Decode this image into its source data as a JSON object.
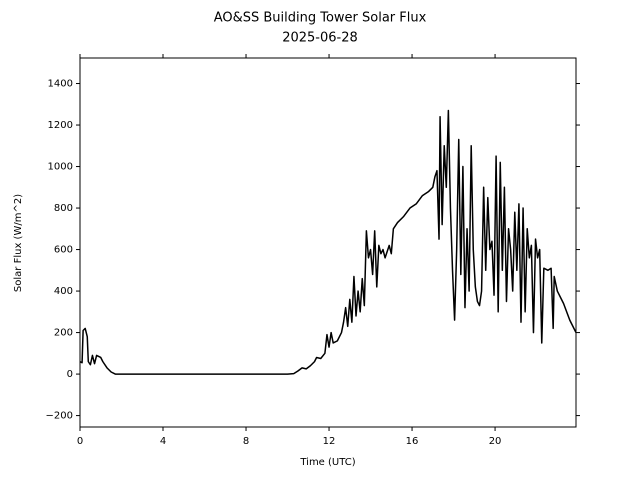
{
  "chart_data": {
    "type": "line",
    "title": "AO&SS Building Tower Solar Flux",
    "subtitle": "2025-06-28",
    "x_label": "Time (UTC)",
    "y_label": "Solar Flux (W/m^2)",
    "xlim": [
      0,
      23.9
    ],
    "ylim": [
      -255,
      1523
    ],
    "xticks": [
      0,
      4,
      8,
      12,
      16,
      20
    ],
    "yticks": [
      {
        "value": -200,
        "label": "−200"
      },
      0,
      200,
      400,
      600,
      800,
      1000,
      1200,
      1400
    ],
    "grid": false,
    "series": [
      {
        "color": "#000000",
        "x": [
          0,
          0.1,
          0.15,
          0.25,
          0.35,
          0.4,
          0.5,
          0.6,
          0.7,
          0.8,
          0.9,
          1.0,
          1.1,
          1.3,
          1.5,
          1.7,
          5,
          10,
          10.3,
          10.5,
          10.7,
          10.9,
          11.1,
          11.3,
          11.4,
          11.6,
          11.8,
          11.9,
          12.0,
          12.1,
          12.2,
          12.4,
          12.6,
          12.7,
          12.8,
          12.9,
          13.0,
          13.1,
          13.2,
          13.3,
          13.4,
          13.5,
          13.6,
          13.7,
          13.8,
          13.9,
          14.0,
          14.1,
          14.2,
          14.3,
          14.4,
          14.5,
          14.6,
          14.7,
          14.9,
          15.0,
          15.1,
          15.3,
          15.6,
          15.9,
          16.2,
          16.5,
          16.8,
          17.0,
          17.1,
          17.2,
          17.3,
          17.35,
          17.45,
          17.55,
          17.65,
          17.75,
          17.85,
          17.95,
          18.05,
          18.15,
          18.25,
          18.35,
          18.45,
          18.55,
          18.65,
          18.75,
          18.85,
          18.95,
          19.05,
          19.15,
          19.25,
          19.35,
          19.45,
          19.55,
          19.65,
          19.75,
          19.85,
          19.95,
          20.05,
          20.15,
          20.25,
          20.35,
          20.45,
          20.55,
          20.65,
          20.75,
          20.85,
          20.95,
          21.05,
          21.15,
          21.25,
          21.35,
          21.45,
          21.55,
          21.65,
          21.75,
          21.85,
          21.95,
          22.05,
          22.15,
          22.25,
          22.35,
          22.55,
          22.7,
          22.8,
          22.85,
          23.0,
          23.3,
          23.6,
          23.9
        ],
        "values": [
          60,
          55,
          210,
          220,
          180,
          60,
          45,
          90,
          50,
          90,
          85,
          80,
          60,
          30,
          10,
          0,
          0,
          0,
          2,
          15,
          30,
          25,
          40,
          60,
          80,
          75,
          100,
          190,
          130,
          200,
          150,
          160,
          200,
          250,
          320,
          230,
          360,
          250,
          470,
          280,
          400,
          300,
          460,
          330,
          690,
          560,
          600,
          480,
          690,
          420,
          620,
          580,
          600,
          560,
          620,
          580,
          700,
          730,
          760,
          800,
          820,
          860,
          880,
          900,
          950,
          980,
          650,
          1240,
          720,
          1100,
          900,
          1270,
          800,
          500,
          260,
          600,
          1130,
          480,
          1000,
          320,
          700,
          400,
          1100,
          600,
          420,
          350,
          330,
          400,
          900,
          500,
          850,
          600,
          640,
          380,
          1050,
          300,
          1020,
          500,
          900,
          350,
          700,
          600,
          400,
          780,
          500,
          820,
          250,
          800,
          300,
          700,
          560,
          620,
          200,
          650,
          560,
          600,
          150,
          510,
          500,
          510,
          220,
          470,
          400,
          340,
          260,
          200
        ]
      }
    ]
  }
}
